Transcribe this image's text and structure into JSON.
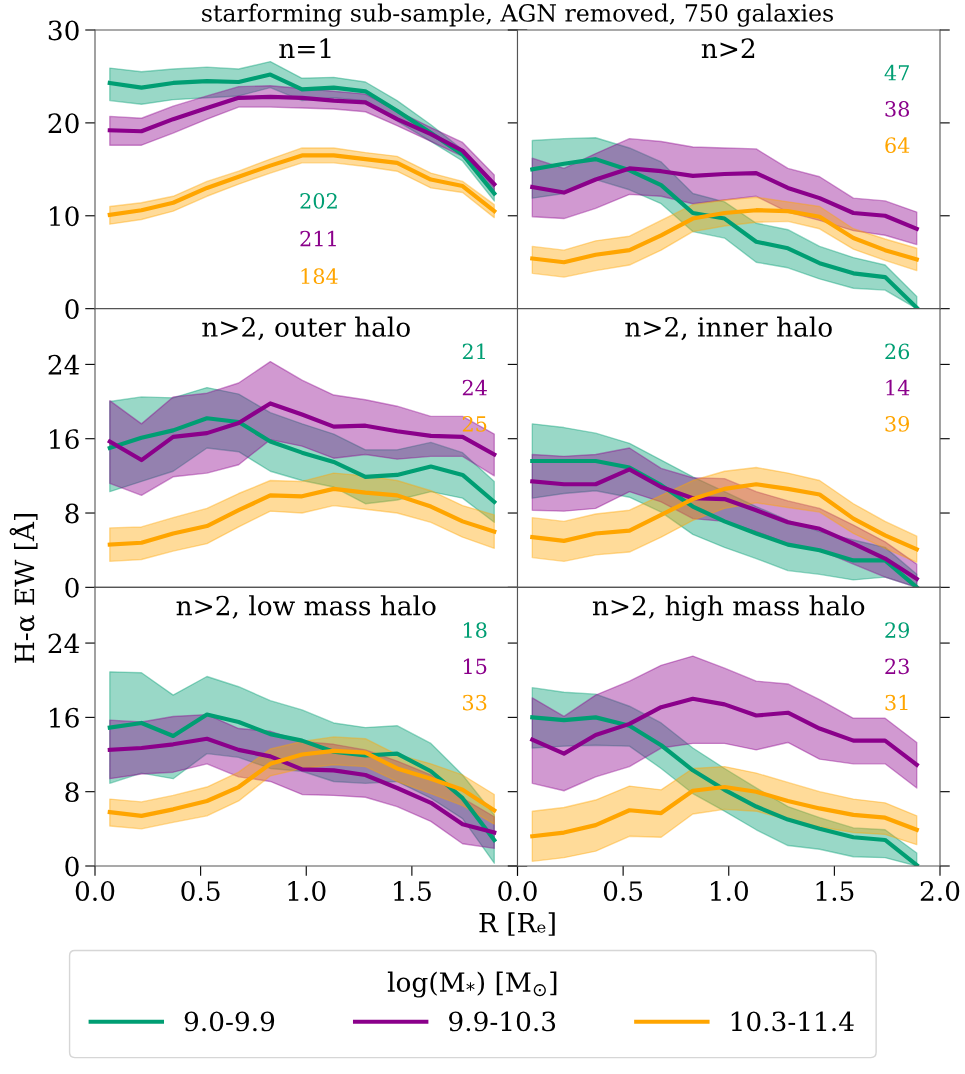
{
  "chart_data": [
    {
      "type": "line",
      "title": "n=1",
      "subtitle": "starforming sub-sample, AGN removed, 750 galaxies",
      "legend": "bottom",
      "legend_title": "log(M$_{*}$) [M$_{⊙}$]",
      "x": [
        0.07,
        0.22,
        0.37,
        0.53,
        0.68,
        0.83,
        0.98,
        1.13,
        1.28,
        1.43,
        1.59,
        1.74,
        1.89
      ],
      "xlim": [
        0,
        2
      ],
      "xticks": [
        0,
        0.5,
        1,
        1.5,
        2
      ],
      "ylim": [
        0,
        30
      ],
      "yticks": [
        0,
        10,
        20,
        30
      ],
      "tick_labels": "y",
      "annotations": [
        "202",
        "211",
        "184"
      ],
      "series": [
        {
          "name": "9.0-9.9",
          "color": "#009e73",
          "values": [
            24.3,
            23.8,
            24.3,
            24.5,
            24.4,
            25.2,
            23.6,
            23.8,
            23.4,
            21.3,
            18.9,
            16.6,
            12.4
          ],
          "upper": [
            25.9,
            25.5,
            25.8,
            26.0,
            25.8,
            26.6,
            24.8,
            24.9,
            24.4,
            22.4,
            19.8,
            17.1,
            13.0
          ],
          "lower": [
            22.4,
            22.0,
            22.5,
            22.7,
            22.9,
            23.8,
            22.4,
            22.7,
            22.4,
            20.2,
            18.0,
            15.9,
            11.6
          ]
        },
        {
          "name": "9.9-10.3",
          "color": "#8b008b",
          "values": [
            19.2,
            19.1,
            20.4,
            21.6,
            22.7,
            22.8,
            22.7,
            22.4,
            22.2,
            20.4,
            18.8,
            17.0,
            13.4
          ],
          "upper": [
            20.7,
            20.5,
            21.8,
            22.9,
            23.9,
            24.0,
            23.7,
            23.4,
            23.1,
            21.3,
            19.5,
            17.9,
            14.4
          ],
          "lower": [
            17.6,
            17.6,
            18.9,
            20.4,
            21.7,
            21.7,
            21.6,
            21.5,
            21.2,
            19.7,
            18.0,
            16.4,
            12.6
          ]
        },
        {
          "name": "10.3-11.4",
          "color": "#ffa500",
          "values": [
            10.1,
            10.6,
            11.4,
            13.0,
            14.2,
            15.4,
            16.5,
            16.5,
            16.1,
            15.7,
            13.9,
            13.2,
            10.5
          ],
          "upper": [
            11.0,
            11.4,
            12.1,
            13.7,
            14.8,
            16.1,
            17.3,
            17.3,
            16.8,
            16.4,
            14.6,
            13.7,
            11.2
          ],
          "lower": [
            9.1,
            9.6,
            10.5,
            12.1,
            13.4,
            14.6,
            15.7,
            15.7,
            15.3,
            14.8,
            13.0,
            12.5,
            9.8
          ]
        }
      ]
    },
    {
      "type": "line",
      "title": "n>2",
      "x": [
        0.07,
        0.22,
        0.37,
        0.53,
        0.68,
        0.83,
        0.98,
        1.13,
        1.28,
        1.43,
        1.59,
        1.74,
        1.89
      ],
      "xlim": [
        0,
        2
      ],
      "xticks": [
        0,
        0.5,
        1,
        1.5,
        2
      ],
      "ylim": [
        0,
        30
      ],
      "yticks": [
        0,
        10,
        20,
        30
      ],
      "tick_labels": false,
      "annotations": [
        "47",
        "38",
        "64"
      ],
      "series": [
        {
          "color": "#009e73",
          "values": [
            15.0,
            15.6,
            16.1,
            14.9,
            13.3,
            10.3,
            9.7,
            7.2,
            6.5,
            4.9,
            3.8,
            3.4,
            0.1
          ],
          "upper": [
            18.1,
            18.3,
            18.4,
            17.3,
            15.8,
            12.4,
            11.5,
            9.2,
            8.5,
            6.7,
            5.5,
            4.7,
            1.3
          ],
          "lower": [
            11.9,
            12.4,
            13.9,
            12.8,
            11.3,
            8.3,
            7.6,
            5.0,
            4.4,
            3.2,
            2.2,
            2.0,
            0
          ]
        },
        {
          "color": "#8b008b",
          "values": [
            13.1,
            12.5,
            13.9,
            15.1,
            14.8,
            14.3,
            14.5,
            14.6,
            13.0,
            11.9,
            10.3,
            10.0,
            8.6
          ],
          "upper": [
            16.2,
            15.1,
            16.7,
            18.3,
            18.0,
            17.4,
            17.3,
            17.2,
            15.1,
            14.2,
            11.9,
            11.6,
            10.4
          ],
          "lower": [
            9.9,
            9.7,
            10.8,
            12.3,
            12.1,
            11.3,
            11.7,
            12.1,
            10.4,
            9.5,
            8.4,
            7.9,
            6.9
          ]
        },
        {
          "color": "#ffa500",
          "values": [
            5.4,
            5.0,
            5.8,
            6.3,
            7.9,
            9.7,
            10.3,
            10.6,
            10.5,
            9.9,
            7.6,
            6.3,
            5.3
          ],
          "upper": [
            6.7,
            6.3,
            7.3,
            7.8,
            9.5,
            11.2,
            11.7,
            12.0,
            11.5,
            11.0,
            8.6,
            7.5,
            6.5
          ],
          "lower": [
            3.8,
            3.4,
            4.1,
            4.7,
            6.3,
            8.3,
            8.9,
            9.3,
            9.4,
            8.6,
            6.4,
            5.2,
            4.1
          ]
        }
      ]
    },
    {
      "type": "line",
      "title": "n>2, outer halo",
      "ylabel": "H-α EW [Å]",
      "x": [
        0.07,
        0.22,
        0.37,
        0.53,
        0.68,
        0.83,
        0.98,
        1.13,
        1.28,
        1.43,
        1.59,
        1.74,
        1.89
      ],
      "xlim": [
        0,
        2
      ],
      "xticks": [
        0,
        0.5,
        1,
        1.5,
        2
      ],
      "ylim": [
        0,
        30
      ],
      "yticks": [
        0,
        8,
        16,
        24
      ],
      "tick_labels": "y",
      "annotations": [
        "21",
        "24",
        "25"
      ],
      "series": [
        {
          "color": "#009e73",
          "values": [
            15.0,
            16.1,
            16.9,
            18.2,
            17.8,
            15.7,
            14.5,
            13.5,
            11.9,
            12.1,
            13.0,
            12.1,
            9.2
          ],
          "upper": [
            20.0,
            20.5,
            20.4,
            21.5,
            20.8,
            18.8,
            17.6,
            16.5,
            14.8,
            14.8,
            15.6,
            14.5,
            11.4
          ],
          "lower": [
            10.3,
            11.4,
            12.5,
            15.0,
            14.6,
            12.5,
            11.5,
            10.8,
            9.0,
            9.4,
            10.3,
            9.6,
            7.0
          ]
        },
        {
          "color": "#8b008b",
          "values": [
            15.7,
            13.7,
            16.2,
            16.6,
            17.7,
            19.8,
            18.6,
            17.3,
            17.4,
            16.8,
            16.3,
            16.2,
            14.3
          ],
          "upper": [
            20.1,
            17.6,
            20.5,
            20.9,
            22.0,
            24.3,
            22.3,
            20.7,
            20.2,
            19.5,
            18.4,
            18.4,
            16.5
          ],
          "lower": [
            11.2,
            9.9,
            11.9,
            12.3,
            13.2,
            15.9,
            15.2,
            13.9,
            14.3,
            13.8,
            14.1,
            14.1,
            12.0
          ]
        },
        {
          "color": "#ffa500",
          "values": [
            4.6,
            4.8,
            5.8,
            6.6,
            8.3,
            9.9,
            9.8,
            10.6,
            10.2,
            9.9,
            8.7,
            7.1,
            6.0
          ],
          "upper": [
            6.4,
            6.5,
            7.5,
            8.5,
            10.1,
            11.5,
            11.4,
            12.3,
            12.0,
            11.5,
            10.4,
            8.8,
            7.8
          ],
          "lower": [
            2.8,
            3.0,
            3.9,
            4.7,
            6.5,
            8.2,
            8.0,
            8.8,
            8.4,
            8.0,
            7.0,
            5.4,
            4.2
          ]
        }
      ]
    },
    {
      "type": "line",
      "title": "n>2, inner halo",
      "x": [
        0.07,
        0.22,
        0.37,
        0.53,
        0.68,
        0.83,
        0.98,
        1.13,
        1.28,
        1.43,
        1.59,
        1.74,
        1.89
      ],
      "xlim": [
        0,
        2
      ],
      "xticks": [
        0,
        0.5,
        1,
        1.5,
        2
      ],
      "ylim": [
        0,
        30
      ],
      "yticks": [
        0,
        8,
        16,
        24
      ],
      "tick_labels": false,
      "annotations": [
        "26",
        "14",
        "39"
      ],
      "series": [
        {
          "color": "#009e73",
          "values": [
            13.6,
            13.6,
            13.6,
            12.9,
            11.0,
            8.7,
            7.1,
            5.8,
            4.6,
            4.0,
            2.9,
            2.9,
            0
          ],
          "upper": [
            17.6,
            17.2,
            16.6,
            15.5,
            13.7,
            11.9,
            10.3,
            8.7,
            7.2,
            6.0,
            5.1,
            4.3,
            1.4
          ],
          "lower": [
            9.6,
            10.1,
            10.4,
            9.7,
            8.1,
            5.7,
            4.3,
            3.1,
            1.8,
            1.4,
            0.8,
            1.1,
            0
          ]
        },
        {
          "color": "#8b008b",
          "values": [
            11.4,
            11.1,
            11.1,
            12.7,
            10.8,
            9.6,
            9.5,
            8.3,
            7.0,
            6.3,
            4.7,
            3.1,
            0.9
          ],
          "upper": [
            14.3,
            14.1,
            14.3,
            15.0,
            12.8,
            11.8,
            11.7,
            10.3,
            9.3,
            8.5,
            6.7,
            4.9,
            2.5
          ],
          "lower": [
            8.3,
            8.2,
            8.5,
            10.3,
            9.2,
            7.4,
            7.1,
            6.0,
            4.7,
            4.0,
            2.5,
            1.1,
            0
          ]
        },
        {
          "color": "#ffa500",
          "values": [
            5.4,
            5.0,
            5.8,
            6.1,
            7.8,
            9.5,
            10.6,
            11.1,
            10.6,
            10.0,
            7.4,
            5.6,
            4.1
          ],
          "upper": [
            7.5,
            7.1,
            7.9,
            8.3,
            9.9,
            11.5,
            12.5,
            12.9,
            12.3,
            11.5,
            9.0,
            7.1,
            5.5
          ],
          "lower": [
            3.2,
            2.8,
            3.5,
            3.8,
            5.4,
            7.2,
            8.5,
            9.1,
            8.6,
            8.1,
            5.8,
            4.2,
            2.7
          ]
        }
      ]
    },
    {
      "type": "line",
      "title": "n>2, low mass halo",
      "xlabel": "R [Rₑ]",
      "x": [
        0.07,
        0.22,
        0.37,
        0.53,
        0.68,
        0.83,
        0.98,
        1.13,
        1.28,
        1.43,
        1.59,
        1.74,
        1.89
      ],
      "xlim": [
        0,
        2
      ],
      "xticks": [
        {
          "value": 0,
          "label": "0.0"
        },
        0.5,
        {
          "value": 1,
          "label": "1.0"
        },
        1.5,
        {
          "value": 2,
          "label": null
        }
      ],
      "ylim": [
        0,
        30
      ],
      "yticks": [
        0,
        8,
        16,
        24
      ],
      "annotations": [
        "18",
        "15",
        "33"
      ],
      "series": [
        {
          "color": "#009e73",
          "values": [
            14.9,
            15.4,
            14.0,
            16.3,
            15.5,
            14.2,
            13.5,
            12.3,
            11.9,
            12.1,
            10.2,
            7.3,
            2.8
          ],
          "upper": [
            20.9,
            20.8,
            18.4,
            20.4,
            19.3,
            17.8,
            16.8,
            15.4,
            14.9,
            15.1,
            13.2,
            9.8,
            5.5
          ],
          "lower": [
            8.9,
            10.0,
            9.4,
            12.1,
            11.7,
            10.5,
            10.2,
            9.1,
            8.9,
            9.1,
            7.3,
            5.1,
            0.3
          ]
        },
        {
          "color": "#8b008b",
          "values": [
            12.5,
            12.7,
            13.1,
            13.7,
            12.5,
            11.8,
            10.4,
            10.3,
            9.8,
            8.4,
            6.8,
            4.5,
            3.6
          ],
          "upper": [
            15.7,
            15.5,
            16.1,
            16.3,
            14.8,
            14.5,
            13.4,
            13.1,
            12.5,
            11.3,
            9.8,
            7.3,
            5.3
          ],
          "lower": [
            9.4,
            9.9,
            10.1,
            11.0,
            9.6,
            9.1,
            7.7,
            7.6,
            7.4,
            6.4,
            4.8,
            2.4,
            1.9
          ]
        },
        {
          "color": "#ffa500",
          "values": [
            5.8,
            5.4,
            6.1,
            7.0,
            8.5,
            11.0,
            12.0,
            12.4,
            12.2,
            10.5,
            9.4,
            8.2,
            6.0
          ],
          "upper": [
            7.2,
            6.9,
            7.6,
            8.5,
            10.1,
            12.6,
            13.4,
            13.9,
            13.7,
            12.0,
            11.0,
            9.8,
            7.7
          ],
          "lower": [
            4.3,
            4.0,
            4.7,
            5.4,
            7.0,
            9.7,
            10.5,
            10.9,
            10.7,
            9.1,
            7.8,
            6.5,
            4.5
          ]
        }
      ]
    },
    {
      "type": "line",
      "title": "n>2, high mass halo",
      "x": [
        0.07,
        0.22,
        0.37,
        0.53,
        0.68,
        0.83,
        0.98,
        1.13,
        1.28,
        1.43,
        1.59,
        1.74,
        1.89
      ],
      "xlim": [
        0,
        2
      ],
      "xticks": [
        {
          "value": 0,
          "label": "0.0"
        },
        0.5,
        {
          "value": 1,
          "label": "1.0"
        },
        1.5,
        {
          "value": 2,
          "label": "2.0"
        }
      ],
      "ylim": [
        0,
        30
      ],
      "yticks": [
        0,
        8,
        16,
        24
      ],
      "tick_labels": "x",
      "annotations": [
        "29",
        "23",
        "31"
      ],
      "series": [
        {
          "color": "#009e73",
          "values": [
            16.0,
            15.7,
            16.0,
            15.1,
            13.0,
            10.3,
            8.2,
            6.4,
            5.0,
            4.0,
            3.1,
            2.8,
            0.1
          ],
          "upper": [
            19.2,
            18.7,
            18.5,
            17.2,
            15.4,
            12.7,
            10.5,
            8.4,
            6.4,
            5.2,
            4.1,
            3.9,
            1.4
          ],
          "lower": [
            12.7,
            12.9,
            13.0,
            12.9,
            10.5,
            7.8,
            5.9,
            3.9,
            2.2,
            1.8,
            1.0,
            0.9,
            0
          ]
        },
        {
          "color": "#8b008b",
          "values": [
            13.6,
            12.1,
            14.1,
            15.3,
            17.1,
            18.0,
            17.4,
            16.2,
            16.5,
            14.8,
            13.5,
            13.5,
            10.9
          ],
          "upper": [
            18.1,
            16.1,
            18.4,
            19.9,
            21.6,
            22.6,
            21.3,
            19.9,
            19.6,
            17.9,
            15.9,
            15.9,
            13.3
          ],
          "lower": [
            8.9,
            8.1,
            9.6,
            10.7,
            12.7,
            13.2,
            13.2,
            12.5,
            13.3,
            11.5,
            11.0,
            11.0,
            8.4
          ]
        },
        {
          "color": "#ffa500",
          "values": [
            3.2,
            3.6,
            4.4,
            6.0,
            5.7,
            8.1,
            8.5,
            8.0,
            7.0,
            6.2,
            5.5,
            5.2,
            3.9
          ],
          "upper": [
            5.9,
            6.3,
            7.1,
            8.6,
            8.2,
            10.5,
            10.7,
            10.0,
            9.0,
            8.0,
            7.2,
            6.8,
            5.4
          ],
          "lower": [
            0.5,
            0.9,
            1.6,
            3.2,
            3.1,
            5.6,
            6.1,
            5.9,
            5.0,
            4.2,
            3.6,
            3.4,
            2.3
          ]
        }
      ]
    }
  ]
}
